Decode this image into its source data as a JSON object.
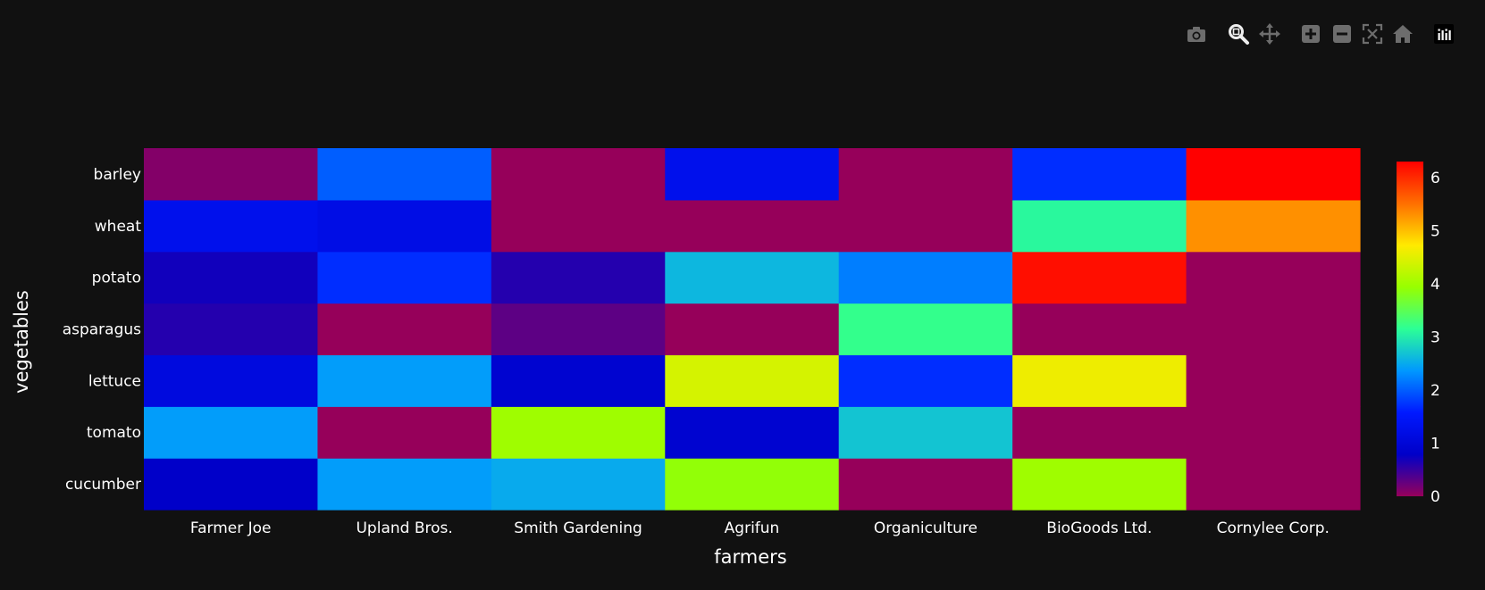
{
  "modebar": {
    "icons": [
      "camera-icon",
      "zoom-icon",
      "pan-icon",
      "zoom-in-icon",
      "zoom-out-icon",
      "autoscale-icon",
      "home-icon",
      "plotly-logo-icon"
    ]
  },
  "chart_data": {
    "type": "heatmap",
    "title": "",
    "xlabel": "farmers",
    "ylabel": "vegetables",
    "x": [
      "Farmer Joe",
      "Upland Bros.",
      "Smith Gardening",
      "Agrifun",
      "Organiculture",
      "BioGoods Ltd.",
      "Cornylee Corp."
    ],
    "y": [
      "cucumber",
      "tomato",
      "lettuce",
      "asparagus",
      "potato",
      "wheat",
      "barley"
    ],
    "z": [
      [
        0.8,
        2.4,
        2.5,
        3.9,
        0.0,
        4.0,
        0.0
      ],
      [
        2.4,
        0.0,
        4.0,
        0.9,
        2.7,
        0.0,
        0.0
      ],
      [
        1.1,
        2.4,
        0.9,
        4.4,
        1.7,
        4.6,
        0.0
      ],
      [
        0.6,
        0.0,
        0.3,
        0.0,
        3.2,
        0.0,
        0.0
      ],
      [
        0.7,
        1.7,
        0.6,
        2.6,
        2.2,
        6.2,
        0.0
      ],
      [
        1.3,
        1.2,
        0.0,
        0.0,
        0.0,
        3.1,
        5.3
      ],
      [
        0.1,
        2.0,
        0.0,
        1.3,
        0.0,
        1.7,
        6.3
      ]
    ],
    "zmin": 0,
    "zmax": 6.3,
    "colorscale": "rainbow",
    "colorbar": {
      "ticks": [
        0,
        1,
        2,
        3,
        4,
        5,
        6
      ]
    },
    "background": "#111111"
  }
}
